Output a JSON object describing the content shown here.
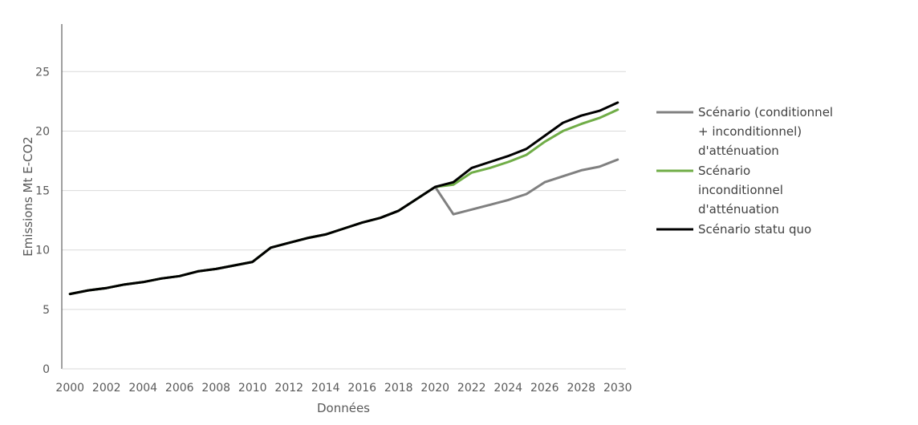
{
  "chart_data": {
    "type": "line",
    "title": "",
    "xlabel": "Données",
    "ylabel": "Emissions Mt E-CO2",
    "ylim": [
      0,
      29
    ],
    "yticks": [
      "0",
      "5",
      "10",
      "15",
      "20",
      "25"
    ],
    "xticks": [
      "2000",
      "2002",
      "2004",
      "2006",
      "2008",
      "2010",
      "2012",
      "2014",
      "2016",
      "2018",
      "2020",
      "2022",
      "2024",
      "2026",
      "2028",
      "2030"
    ],
    "grid": "horizontal",
    "legend_position": "right",
    "x": [
      2000,
      2001,
      2002,
      2003,
      2004,
      2005,
      2006,
      2007,
      2008,
      2009,
      2010,
      2011,
      2012,
      2013,
      2014,
      2015,
      2016,
      2017,
      2018,
      2019,
      2020,
      2021,
      2022,
      2023,
      2024,
      2025,
      2026,
      2027,
      2028,
      2029,
      2030
    ],
    "series": [
      {
        "name": "Scénario (conditionnel + inconditionnel) d'atténuation",
        "legend_lines": [
          "Scénario (conditionnel",
          "+ inconditionnel)",
          "d'atténuation"
        ],
        "color": "#808080",
        "values": [
          6.3,
          6.6,
          6.8,
          7.1,
          7.3,
          7.6,
          7.8,
          8.2,
          8.4,
          8.7,
          9.0,
          10.2,
          10.6,
          11.0,
          11.3,
          11.8,
          12.3,
          12.7,
          13.3,
          14.3,
          15.3,
          13.0,
          13.4,
          13.8,
          14.2,
          14.7,
          15.7,
          16.2,
          16.7,
          17.0,
          17.6
        ]
      },
      {
        "name": "Scénario inconditionnel d'atténuation",
        "legend_lines": [
          "Scénario",
          "inconditionnel",
          "d'atténuation"
        ],
        "color": "#70ad47",
        "values": [
          6.3,
          6.6,
          6.8,
          7.1,
          7.3,
          7.6,
          7.8,
          8.2,
          8.4,
          8.7,
          9.0,
          10.2,
          10.6,
          11.0,
          11.3,
          11.8,
          12.3,
          12.7,
          13.3,
          14.3,
          15.3,
          15.5,
          16.5,
          16.9,
          17.4,
          18.0,
          19.1,
          20.0,
          20.6,
          21.1,
          21.8
        ]
      },
      {
        "name": "Scénario statu quo",
        "legend_lines": [
          "Scénario statu quo"
        ],
        "color": "#000000",
        "values": [
          6.3,
          6.6,
          6.8,
          7.1,
          7.3,
          7.6,
          7.8,
          8.2,
          8.4,
          8.7,
          9.0,
          10.2,
          10.6,
          11.0,
          11.3,
          11.8,
          12.3,
          12.7,
          13.3,
          14.3,
          15.3,
          15.7,
          16.9,
          17.4,
          17.9,
          18.5,
          19.6,
          20.7,
          21.3,
          21.7,
          22.4
        ]
      }
    ]
  }
}
